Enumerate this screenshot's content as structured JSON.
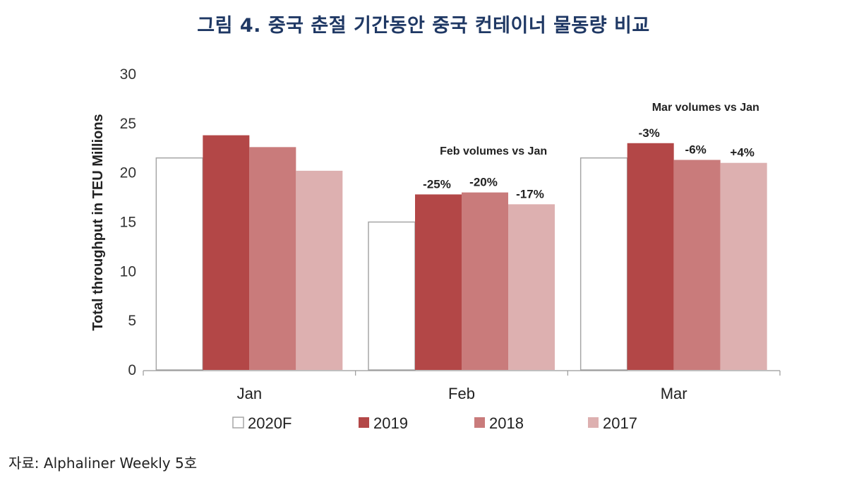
{
  "title": "그림 4. 중국 춘절 기간동안 중국 컨테이너 물동량 비교",
  "source": "자료: Alphaliner Weekly 5호",
  "colors": {
    "title": "#1f3864",
    "2020F": "#ffffff",
    "2019": "#b34747",
    "2018": "#c97b7b",
    "2017": "#ddb0b0",
    "outline": "#a6a6a6"
  },
  "chart_data": {
    "type": "bar",
    "title": "그림 4. 중국 춘절 기간동안 중국 컨테이너 물동량 비교",
    "xlabel": "",
    "ylabel": "Total throughput in TEU Millions",
    "ylim": [
      0,
      30
    ],
    "yticks": [
      0,
      5,
      10,
      15,
      20,
      25,
      30
    ],
    "grid": false,
    "legend_position": "bottom",
    "categories": [
      "Jan",
      "Feb",
      "Mar"
    ],
    "series": [
      {
        "name": "2020F",
        "values": [
          21.5,
          15.0,
          21.5
        ]
      },
      {
        "name": "2019",
        "values": [
          23.8,
          17.8,
          23.0
        ]
      },
      {
        "name": "2018",
        "values": [
          22.6,
          18.0,
          21.3
        ]
      },
      {
        "name": "2017",
        "values": [
          20.2,
          16.8,
          21.0
        ]
      }
    ],
    "annotations": [
      {
        "group": "Feb",
        "text": "Feb volumes vs Jan"
      },
      {
        "group": "Feb",
        "series": "2019",
        "text": "-25%"
      },
      {
        "group": "Feb",
        "series": "2018",
        "text": "-20%"
      },
      {
        "group": "Feb",
        "series": "2017",
        "text": "-17%"
      },
      {
        "group": "Mar",
        "text": "Mar volumes vs Jan"
      },
      {
        "group": "Mar",
        "series": "2019",
        "text": "-3%"
      },
      {
        "group": "Mar",
        "series": "2018",
        "text": "-6%"
      },
      {
        "group": "Mar",
        "series": "2017",
        "text": "+4%"
      }
    ]
  }
}
